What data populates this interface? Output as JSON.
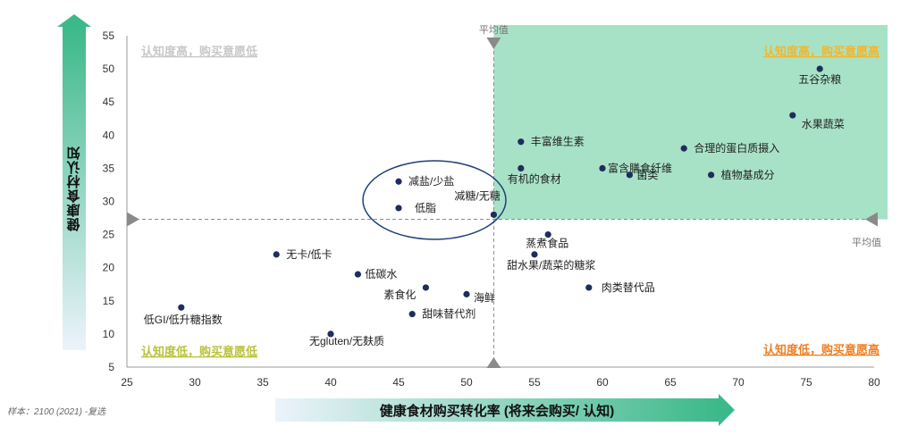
{
  "chart_data": {
    "type": "scatter",
    "xlabel": "健康食材购买转化率 (将来会购买/ 认知)",
    "ylabel": "健康食材认知",
    "xlim": [
      25,
      80
    ],
    "ylim": [
      5,
      55
    ],
    "x_ticks": [
      "25",
      "30",
      "35",
      "40",
      "45",
      "50",
      "55",
      "60",
      "65",
      "70",
      "75",
      "80"
    ],
    "y_ticks": [
      "5",
      "10",
      "15",
      "20",
      "25",
      "30",
      "35",
      "40",
      "45",
      "50",
      "55"
    ],
    "avg_x": 52,
    "avg_y": 27.3,
    "avg_label_top": "平均值",
    "avg_label_right": "平均值",
    "point_color": "#1f2d5c",
    "highlight_color": "#a8e2c6",
    "points": [
      {
        "label": "五谷杂粮",
        "x": 76,
        "y": 50
      },
      {
        "label": "水果蔬菜",
        "x": 74,
        "y": 43
      },
      {
        "label": "合理的蛋白质摄入",
        "x": 66,
        "y": 38
      },
      {
        "label": "植物基成分",
        "x": 68,
        "y": 34
      },
      {
        "label": "丰富维生素",
        "x": 54,
        "y": 39
      },
      {
        "label": "有机的食材",
        "x": 54,
        "y": 35
      },
      {
        "label": "富含膳食纤维",
        "x": 60,
        "y": 35
      },
      {
        "label": "菌类",
        "x": 62,
        "y": 34
      },
      {
        "label": "减盐/少盐",
        "x": 45,
        "y": 33
      },
      {
        "label": "低脂",
        "x": 45,
        "y": 29
      },
      {
        "label": "减糖/无糖",
        "x": 52,
        "y": 28
      },
      {
        "label": "蒸煮食品",
        "x": 56,
        "y": 25
      },
      {
        "label": "甜水果/蔬菜的糖浆",
        "x": 55,
        "y": 22
      },
      {
        "label": "肉类替代品",
        "x": 59,
        "y": 17
      },
      {
        "label": "无卡/低卡",
        "x": 36,
        "y": 22
      },
      {
        "label": "低碳水",
        "x": 42,
        "y": 19
      },
      {
        "label": "素食化",
        "x": 47,
        "y": 17
      },
      {
        "label": "海鲜",
        "x": 50,
        "y": 16
      },
      {
        "label": "甜味替代剂",
        "x": 46,
        "y": 13
      },
      {
        "label": "低GI/低升糖指数",
        "x": 29,
        "y": 14
      },
      {
        "label": "无gluten/无麸质",
        "x": 40,
        "y": 10
      }
    ],
    "quadrants": {
      "top_left": {
        "text": "认知度高，购买意愿低",
        "color": "#c8c8c8"
      },
      "top_right": {
        "text": "认知度高，购买意愿高",
        "color": "#f2b62c"
      },
      "bottom_left": {
        "text": "认知度低，购买意愿低",
        "color": "#b9c23a"
      },
      "bottom_right": {
        "text": "认知度低，购买意愿高",
        "color": "#ef7f22"
      }
    }
  },
  "sample_note": "样本：2100 (2021) -复选"
}
